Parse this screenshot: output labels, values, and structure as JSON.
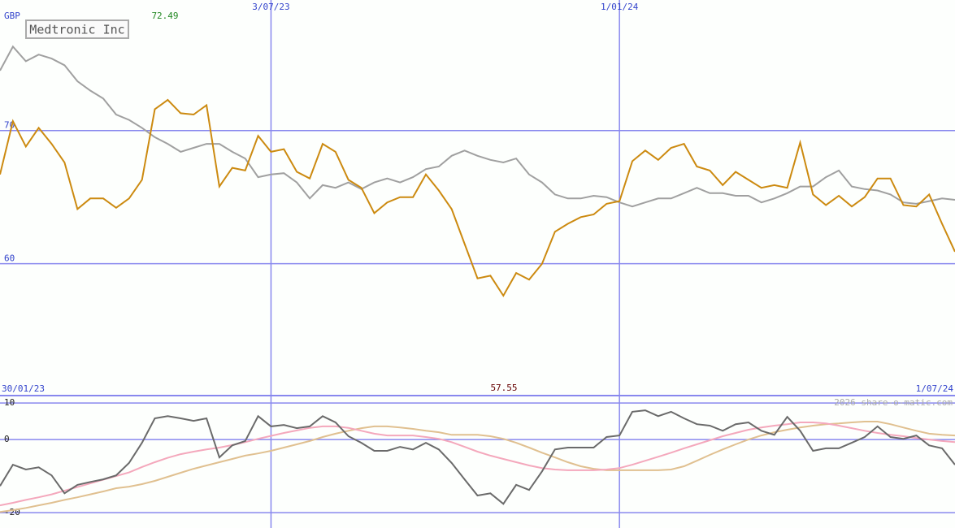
{
  "chart_data": [
    {
      "type": "line",
      "title": "Medtronic Inc",
      "y_unit": "GBP",
      "annotations": [
        "72.49",
        "57.55"
      ],
      "categories": [
        "30/01/23",
        null,
        null,
        null,
        null,
        null,
        null,
        null,
        null,
        null,
        null,
        null,
        null,
        null,
        null,
        null,
        null,
        null,
        null,
        null,
        null,
        "3/07/23",
        null,
        null,
        null,
        null,
        null,
        null,
        null,
        null,
        null,
        null,
        null,
        null,
        null,
        null,
        null,
        null,
        null,
        null,
        null,
        null,
        null,
        null,
        null,
        null,
        null,
        null,
        "1/01/24",
        null,
        null,
        null,
        null,
        null,
        null,
        null,
        null,
        null,
        null,
        null,
        null,
        null,
        null,
        null,
        null,
        null,
        null,
        null,
        null,
        null,
        null,
        null,
        null,
        null,
        "1/07/24"
      ],
      "series": [
        {
          "color": "#a0a0a0",
          "values": [
            74.5,
            76.3,
            75.2,
            75.7,
            75.4,
            74.9,
            73.7,
            73.0,
            72.4,
            71.2,
            70.8,
            70.2,
            69.5,
            69.0,
            68.4,
            68.7,
            69.0,
            69.0,
            68.4,
            67.9,
            66.5,
            66.7,
            66.8,
            66.1,
            64.9,
            65.9,
            65.7,
            66.1,
            65.6,
            66.1,
            66.4,
            66.1,
            66.5,
            67.1,
            67.3,
            68.1,
            68.5,
            68.1,
            67.8,
            67.6,
            67.9,
            66.7,
            66.1,
            65.2,
            64.9,
            64.9,
            65.1,
            65.0,
            64.6,
            64.3,
            64.6,
            64.9,
            64.9,
            65.3,
            65.7,
            65.3,
            65.3,
            65.1,
            65.1,
            64.6,
            64.9,
            65.3,
            65.8,
            65.8,
            66.5,
            67.0,
            65.8,
            65.6,
            65.5,
            65.2,
            64.6,
            64.5,
            64.7,
            64.9,
            64.8
          ]
        },
        {
          "color": "#cc8a10",
          "values": [
            66.7,
            70.7,
            68.8,
            70.2,
            69.0,
            67.6,
            64.1,
            64.9,
            64.9,
            64.2,
            64.9,
            66.3,
            71.6,
            72.3,
            71.3,
            71.2,
            71.9,
            65.8,
            67.2,
            67.0,
            69.6,
            68.4,
            68.6,
            66.9,
            66.4,
            69.0,
            68.4,
            66.3,
            65.7,
            63.8,
            64.6,
            65.0,
            65.0,
            66.7,
            65.5,
            64.1,
            61.5,
            58.9,
            59.1,
            57.6,
            59.3,
            58.8,
            60.0,
            62.4,
            63.0,
            63.5,
            63.7,
            64.5,
            64.7,
            67.7,
            68.5,
            67.8,
            68.7,
            69.0,
            67.3,
            67.0,
            65.9,
            66.9,
            66.3,
            65.7,
            65.9,
            65.7,
            69.1,
            65.2,
            64.4,
            65.1,
            64.3,
            65.0,
            66.4,
            66.4,
            64.4,
            64.3,
            65.2,
            63.0,
            60.9
          ]
        }
      ],
      "ylim": [
        50.1,
        79.8
      ],
      "yticks": [
        60,
        70
      ],
      "grid": true
    },
    {
      "type": "line",
      "source": "2026 share-o-matic.com",
      "series": [
        {
          "color": "#e0c090",
          "values": [
            -19.8,
            -19.3,
            -18.7,
            -18,
            -17.3,
            -16.5,
            -15.8,
            -15,
            -14.2,
            -13.3,
            -12.9,
            -12.2,
            -11.3,
            -10.2,
            -9.1,
            -8,
            -7.1,
            -6.2,
            -5.3,
            -4.4,
            -3.8,
            -3.1,
            -2.2,
            -1.3,
            -0.4,
            0.7,
            1.6,
            2.4,
            3.1,
            3.6,
            3.6,
            3.3,
            2.9,
            2.4,
            2,
            1.3,
            1.3,
            1.3,
            0.9,
            0.2,
            -0.9,
            -2.2,
            -3.6,
            -4.9,
            -6.2,
            -7.3,
            -8,
            -8.4,
            -8.4,
            -8.4,
            -8.4,
            -8.4,
            -8.2,
            -7.3,
            -5.8,
            -4.2,
            -2.7,
            -1.3,
            0,
            1.1,
            2,
            2.7,
            3.3,
            3.8,
            4.2,
            4.4,
            4.7,
            4.9,
            4.9,
            4.2,
            3.3,
            2.4,
            1.6,
            1.3,
            1.1
          ]
        },
        {
          "color": "#f4a8bc",
          "values": [
            -18,
            -17.3,
            -16.5,
            -15.8,
            -15,
            -14,
            -13,
            -12,
            -11,
            -10,
            -9,
            -7.5,
            -6.2,
            -5,
            -4,
            -3.3,
            -2.7,
            -2.2,
            -1.5,
            -0.7,
            0.2,
            1,
            1.8,
            2.5,
            3.2,
            3.6,
            3.6,
            3.2,
            2.4,
            1.6,
            1.1,
            1.1,
            1.1,
            0.7,
            0.2,
            -0.7,
            -2,
            -3.3,
            -4.4,
            -5.3,
            -6.2,
            -7.1,
            -7.8,
            -8.2,
            -8.4,
            -8.4,
            -8.4,
            -8.2,
            -7.8,
            -6.9,
            -5.8,
            -4.7,
            -3.6,
            -2.4,
            -1.3,
            -0.2,
            0.9,
            1.8,
            2.7,
            3.3,
            3.8,
            4.2,
            4.7,
            4.7,
            4.4,
            3.8,
            3.1,
            2.4,
            1.8,
            1.3,
            0.9,
            0.4,
            0,
            -0.4,
            -0.7
          ]
        },
        {
          "color": "#6a6a6a",
          "values": [
            -12.7,
            -6.9,
            -8.2,
            -7.6,
            -9.8,
            -14.7,
            -12.4,
            -11.6,
            -10.9,
            -9.8,
            -6.4,
            -0.9,
            5.8,
            6.4,
            5.8,
            5.1,
            5.8,
            -4.9,
            -1.6,
            -0.4,
            6.4,
            3.6,
            4.0,
            3.1,
            3.6,
            6.4,
            4.7,
            0.9,
            -0.9,
            -3.1,
            -3.1,
            -2.0,
            -2.7,
            -0.9,
            -2.7,
            -6.4,
            -10.9,
            -15.3,
            -14.7,
            -17.6,
            -12.4,
            -13.8,
            -8.7,
            -2.7,
            -2.2,
            -2.2,
            -2.2,
            0.7,
            1.1,
            7.6,
            8.0,
            6.4,
            7.6,
            5.8,
            4.2,
            3.8,
            2.4,
            4.2,
            4.7,
            2.4,
            1.3,
            6.2,
            2.4,
            -3.1,
            -2.4,
            -2.4,
            -0.9,
            0.7,
            3.6,
            0.7,
            0.2,
            1.1,
            -1.6,
            -2.4,
            -6.9
          ]
        }
      ],
      "ylim": [
        -24.2,
        11.8
      ],
      "yticks": [
        10,
        0,
        -20
      ],
      "grid": true
    }
  ]
}
